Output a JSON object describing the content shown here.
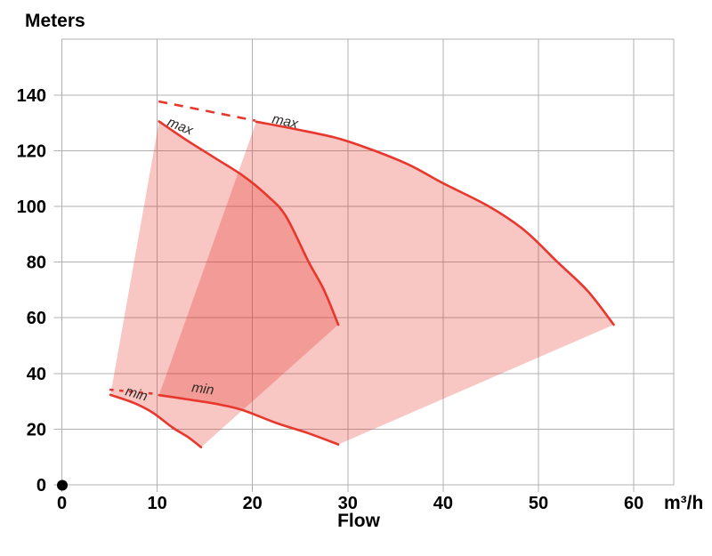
{
  "chart": {
    "y_axis_title": "Meters",
    "x_axis_title": "Flow",
    "x_axis_unit": "m³/h"
  },
  "chart_data": {
    "type": "area",
    "title": "",
    "ylabel": "Meters",
    "xlabel": "Flow",
    "x_unit": "m³/h",
    "xlim": [
      0,
      64.2
    ],
    "ylim": [
      0,
      160
    ],
    "x_ticks": [
      0,
      10,
      20,
      30,
      40,
      50,
      60
    ],
    "y_ticks": [
      0,
      20,
      40,
      60,
      80,
      100,
      120,
      140
    ],
    "grid": true,
    "legend": "none",
    "description": "Two overlapping pump performance envelopes (flow vs head), each bounded by a max curve and a min curve; dashed lines extend the larger envelope's max and min curves to lower flows",
    "envelopes": [
      {
        "name": "small-pump-envelope",
        "max_curve": [
          [
            10.2,
            130.5
          ],
          [
            13,
            124
          ],
          [
            16,
            117.5
          ],
          [
            19,
            111
          ],
          [
            21.5,
            104
          ],
          [
            23.5,
            96.5
          ],
          [
            25.9,
            80
          ],
          [
            27.5,
            70
          ],
          [
            29,
            57.5
          ]
        ],
        "min_curve": [
          [
            5.1,
            32.3
          ],
          [
            7.5,
            29.5
          ],
          [
            9.5,
            26
          ],
          [
            11.6,
            20.6
          ],
          [
            13.3,
            17
          ],
          [
            14.6,
            13.5
          ]
        ]
      },
      {
        "name": "large-pump-envelope",
        "max_curve": [
          [
            20.4,
            130.4
          ],
          [
            24.7,
            127.6
          ],
          [
            29,
            124.4
          ],
          [
            32.8,
            120
          ],
          [
            36.5,
            114.8
          ],
          [
            40,
            108.3
          ],
          [
            44.8,
            100
          ],
          [
            48.5,
            91.5
          ],
          [
            52,
            80
          ],
          [
            55.2,
            69.5
          ],
          [
            57.9,
            57.5
          ]
        ],
        "min_curve": [
          [
            10.2,
            32.2
          ],
          [
            13,
            30.8
          ],
          [
            16.3,
            29
          ],
          [
            19,
            26.8
          ],
          [
            22.5,
            22.2
          ],
          [
            25.8,
            18.6
          ],
          [
            29,
            14.5
          ]
        ]
      }
    ],
    "dashed_extensions": [
      {
        "name": "max-curve-extension",
        "points": [
          [
            10.15,
            137.7
          ],
          [
            20.3,
            130.8
          ]
        ],
        "dash": "10 8"
      },
      {
        "name": "min-curve-extension",
        "points": [
          [
            5.0,
            34.2
          ],
          [
            10.1,
            32.6
          ]
        ],
        "dash": "4.5 6.5"
      }
    ],
    "curve_labels": [
      {
        "text": "max",
        "q": 10.97,
        "h": 129.1,
        "rotate": 22
      },
      {
        "text": "max",
        "q": 21.99,
        "h": 130.0,
        "rotate": 12
      },
      {
        "text": "min",
        "q": 6.58,
        "h": 32.3,
        "rotate": 16
      },
      {
        "text": "min",
        "q": 13.58,
        "h": 33.5,
        "rotate": 8
      }
    ],
    "origin_marker": {
      "q": 0,
      "h": 0
    },
    "colors": {
      "envelope_fill": "rgba(229,45,35,0.27)",
      "curve_stroke": "#e8372c",
      "grid": "#b0b0b0",
      "axis_text": "#000000",
      "curve_label_text": "#2e2a29",
      "origin_dot": "#000000"
    }
  }
}
